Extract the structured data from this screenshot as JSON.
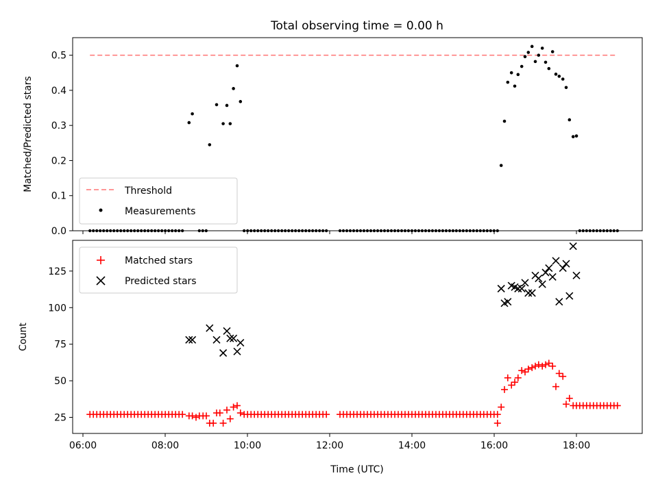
{
  "title": "Total observing time = 0.00 h",
  "chart_data": [
    {
      "type": "scatter",
      "ylabel": "Matched/Predicted stars",
      "ylim": [
        0,
        0.55
      ],
      "yticks": [
        "0.0",
        "0.1",
        "0.2",
        "0.3",
        "0.4",
        "0.5"
      ],
      "legend": "lower-left",
      "threshold": {
        "name": "Threshold",
        "value": 0.5,
        "x": [
          6.17,
          19.0
        ],
        "color": "#ff7373"
      },
      "measurements": {
        "name": "Measurements",
        "color": "#000000",
        "nonzero": [
          {
            "x": 8.58,
            "y": 0.308
          },
          {
            "x": 8.66,
            "y": 0.333
          },
          {
            "x": 9.08,
            "y": 0.245
          },
          {
            "x": 9.25,
            "y": 0.359
          },
          {
            "x": 9.41,
            "y": 0.305
          },
          {
            "x": 9.5,
            "y": 0.357
          },
          {
            "x": 9.58,
            "y": 0.305
          },
          {
            "x": 9.66,
            "y": 0.405
          },
          {
            "x": 9.75,
            "y": 0.47
          },
          {
            "x": 9.83,
            "y": 0.368
          },
          {
            "x": 16.17,
            "y": 0.186
          },
          {
            "x": 16.25,
            "y": 0.312
          },
          {
            "x": 16.33,
            "y": 0.423
          },
          {
            "x": 16.42,
            "y": 0.45
          },
          {
            "x": 16.5,
            "y": 0.412
          },
          {
            "x": 16.58,
            "y": 0.445
          },
          {
            "x": 16.67,
            "y": 0.468
          },
          {
            "x": 16.75,
            "y": 0.496
          },
          {
            "x": 16.83,
            "y": 0.508
          },
          {
            "x": 16.92,
            "y": 0.525
          },
          {
            "x": 17.0,
            "y": 0.482
          },
          {
            "x": 17.08,
            "y": 0.5
          },
          {
            "x": 17.17,
            "y": 0.52
          },
          {
            "x": 17.25,
            "y": 0.48
          },
          {
            "x": 17.33,
            "y": 0.462
          },
          {
            "x": 17.42,
            "y": 0.51
          },
          {
            "x": 17.5,
            "y": 0.446
          },
          {
            "x": 17.58,
            "y": 0.44
          },
          {
            "x": 17.67,
            "y": 0.432
          },
          {
            "x": 17.75,
            "y": 0.408
          },
          {
            "x": 17.83,
            "y": 0.316
          },
          {
            "x": 17.92,
            "y": 0.268
          },
          {
            "x": 18.0,
            "y": 0.27
          }
        ],
        "zero_ranges": [
          [
            6.17,
            8.5
          ],
          [
            8.83,
            9.0
          ],
          [
            9.92,
            12.0
          ],
          [
            12.25,
            15.0
          ],
          [
            15.08,
            16.08
          ],
          [
            18.08,
            19.0
          ]
        ],
        "zero_step": 0.0833
      }
    },
    {
      "type": "scatter",
      "xlabel": "Time (UTC)",
      "ylabel": "Count",
      "xlim": [
        5.75,
        19.6
      ],
      "ylim": [
        14,
        146
      ],
      "xticks": [
        {
          "v": 6,
          "label": "06:00"
        },
        {
          "v": 8,
          "label": "08:00"
        },
        {
          "v": 10,
          "label": "10:00"
        },
        {
          "v": 12,
          "label": "12:00"
        },
        {
          "v": 14,
          "label": "14:00"
        },
        {
          "v": 16,
          "label": "16:00"
        },
        {
          "v": 18,
          "label": "18:00"
        }
      ],
      "yticks": [
        {
          "v": 25,
          "label": "25"
        },
        {
          "v": 50,
          "label": "50"
        },
        {
          "v": 75,
          "label": "75"
        },
        {
          "v": 100,
          "label": "100"
        },
        {
          "v": 125,
          "label": "125"
        }
      ],
      "legend": "upper-left",
      "series": [
        {
          "name": "Matched stars",
          "marker": "plus",
          "color": "#ff0000",
          "baseline": 27,
          "baseline_ranges": [
            [
              6.17,
              8.5
            ],
            [
              9.92,
              12.0
            ],
            [
              12.25,
              15.0
            ],
            [
              15.08,
              16.08
            ]
          ],
          "tail_value": 33,
          "tail_range": [
            18.08,
            19.0
          ],
          "step": 0.0833,
          "points": [
            {
              "x": 8.58,
              "y": 26
            },
            {
              "x": 8.66,
              "y": 26
            },
            {
              "x": 8.75,
              "y": 25
            },
            {
              "x": 8.83,
              "y": 26
            },
            {
              "x": 8.92,
              "y": 26
            },
            {
              "x": 9.0,
              "y": 26
            },
            {
              "x": 9.08,
              "y": 21
            },
            {
              "x": 9.17,
              "y": 21
            },
            {
              "x": 9.25,
              "y": 28
            },
            {
              "x": 9.33,
              "y": 28
            },
            {
              "x": 9.41,
              "y": 21
            },
            {
              "x": 9.5,
              "y": 30
            },
            {
              "x": 9.58,
              "y": 24
            },
            {
              "x": 9.66,
              "y": 32
            },
            {
              "x": 9.75,
              "y": 33
            },
            {
              "x": 9.83,
              "y": 28
            },
            {
              "x": 16.08,
              "y": 21
            },
            {
              "x": 16.17,
              "y": 32
            },
            {
              "x": 16.25,
              "y": 44
            },
            {
              "x": 16.33,
              "y": 52
            },
            {
              "x": 16.42,
              "y": 47
            },
            {
              "x": 16.5,
              "y": 49
            },
            {
              "x": 16.58,
              "y": 52
            },
            {
              "x": 16.67,
              "y": 57
            },
            {
              "x": 16.75,
              "y": 56
            },
            {
              "x": 16.83,
              "y": 58
            },
            {
              "x": 16.92,
              "y": 59
            },
            {
              "x": 17.0,
              "y": 60
            },
            {
              "x": 17.08,
              "y": 61
            },
            {
              "x": 17.17,
              "y": 60
            },
            {
              "x": 17.25,
              "y": 61
            },
            {
              "x": 17.33,
              "y": 62
            },
            {
              "x": 17.42,
              "y": 60
            },
            {
              "x": 17.5,
              "y": 46
            },
            {
              "x": 17.58,
              "y": 55
            },
            {
              "x": 17.67,
              "y": 53
            },
            {
              "x": 17.75,
              "y": 34
            },
            {
              "x": 17.83,
              "y": 38
            },
            {
              "x": 17.92,
              "y": 33
            },
            {
              "x": 18.0,
              "y": 33
            }
          ]
        },
        {
          "name": "Predicted stars",
          "marker": "x",
          "color": "#000000",
          "points": [
            {
              "x": 8.58,
              "y": 78
            },
            {
              "x": 8.66,
              "y": 78
            },
            {
              "x": 9.08,
              "y": 86
            },
            {
              "x": 9.25,
              "y": 78
            },
            {
              "x": 9.41,
              "y": 69
            },
            {
              "x": 9.5,
              "y": 84
            },
            {
              "x": 9.58,
              "y": 79
            },
            {
              "x": 9.66,
              "y": 79
            },
            {
              "x": 9.75,
              "y": 70
            },
            {
              "x": 9.83,
              "y": 76
            },
            {
              "x": 16.17,
              "y": 113
            },
            {
              "x": 16.25,
              "y": 103
            },
            {
              "x": 16.33,
              "y": 104
            },
            {
              "x": 16.42,
              "y": 115
            },
            {
              "x": 16.5,
              "y": 114
            },
            {
              "x": 16.58,
              "y": 113
            },
            {
              "x": 16.67,
              "y": 113
            },
            {
              "x": 16.75,
              "y": 117
            },
            {
              "x": 16.83,
              "y": 110
            },
            {
              "x": 16.92,
              "y": 110
            },
            {
              "x": 17.0,
              "y": 122
            },
            {
              "x": 17.08,
              "y": 120
            },
            {
              "x": 17.17,
              "y": 116
            },
            {
              "x": 17.25,
              "y": 124
            },
            {
              "x": 17.33,
              "y": 127
            },
            {
              "x": 17.42,
              "y": 121
            },
            {
              "x": 17.5,
              "y": 132
            },
            {
              "x": 17.58,
              "y": 104
            },
            {
              "x": 17.67,
              "y": 127
            },
            {
              "x": 17.75,
              "y": 130
            },
            {
              "x": 17.83,
              "y": 108
            },
            {
              "x": 17.92,
              "y": 142
            },
            {
              "x": 18.0,
              "y": 122
            }
          ]
        }
      ]
    }
  ]
}
